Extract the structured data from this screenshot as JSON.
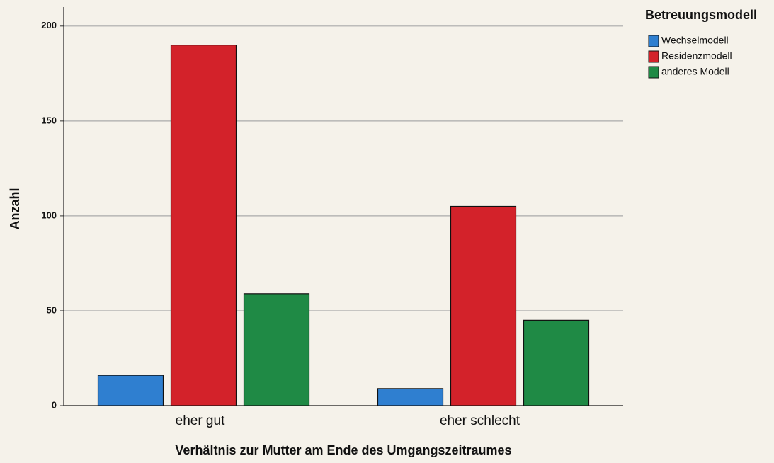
{
  "chart_data": {
    "type": "bar",
    "x_label": "Verhältnis zur Mutter am Ende des Umgangszeitraumes",
    "y_label": "Anzahl",
    "categories": [
      "eher gut",
      "eher schlecht"
    ],
    "series": [
      {
        "name": "Wechselmodell",
        "color": "#2f7fd0",
        "values": [
          16,
          9
        ]
      },
      {
        "name": "Residenzmodell",
        "color": "#d3222a",
        "values": [
          190,
          105
        ]
      },
      {
        "name": "anderes Modell",
        "color": "#1f8a45",
        "values": [
          59,
          45
        ]
      }
    ],
    "legend_title": "Betreuungsmodell",
    "legend_position": "right",
    "ylim": [
      0,
      210
    ],
    "yticks": [
      0,
      50,
      100,
      150,
      200
    ],
    "grid": true
  }
}
